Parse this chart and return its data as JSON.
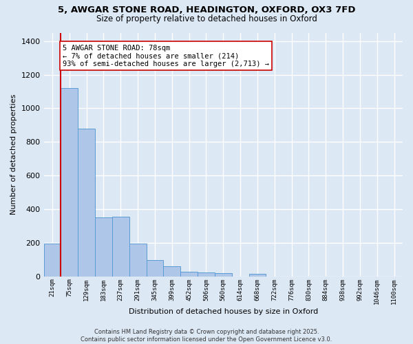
{
  "title_line1": "5, AWGAR STONE ROAD, HEADINGTON, OXFORD, OX3 7FD",
  "title_line2": "Size of property relative to detached houses in Oxford",
  "xlabel": "Distribution of detached houses by size in Oxford",
  "ylabel": "Number of detached properties",
  "categories": [
    "21sqm",
    "75sqm",
    "129sqm",
    "183sqm",
    "237sqm",
    "291sqm",
    "345sqm",
    "399sqm",
    "452sqm",
    "506sqm",
    "560sqm",
    "614sqm",
    "668sqm",
    "722sqm",
    "776sqm",
    "830sqm",
    "884sqm",
    "938sqm",
    "992sqm",
    "1046sqm",
    "1100sqm"
  ],
  "values": [
    195,
    1120,
    880,
    350,
    355,
    195,
    95,
    60,
    25,
    22,
    18,
    0,
    15,
    0,
    0,
    0,
    0,
    0,
    0,
    0,
    0
  ],
  "bar_color": "#aec6e8",
  "bar_edge_color": "#5b9bd5",
  "bg_color": "#dde8f5",
  "grid_color": "#ffffff",
  "vline_x": 0.5,
  "vline_color": "#cc0000",
  "annotation_text": "5 AWGAR STONE ROAD: 78sqm\n← 7% of detached houses are smaller (214)\n93% of semi-detached houses are larger (2,713) →",
  "annotation_box_color": "#ffffff",
  "annotation_box_edge": "#cc0000",
  "ylim": [
    0,
    1450
  ],
  "yticks": [
    0,
    200,
    400,
    600,
    800,
    1000,
    1200,
    1400
  ],
  "footer": "Contains HM Land Registry data © Crown copyright and database right 2025.\nContains public sector information licensed under the Open Government Licence v3.0."
}
